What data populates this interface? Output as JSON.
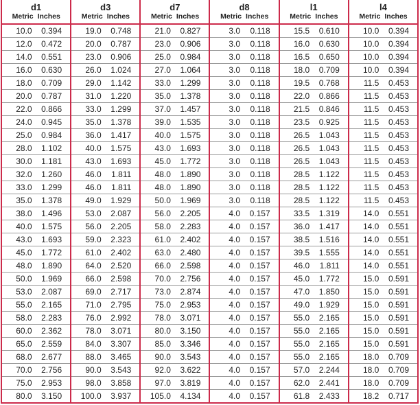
{
  "columns": [
    "d1",
    "d3",
    "d7",
    "d8",
    "l1",
    "l4"
  ],
  "subheaders": {
    "metric": "Metric",
    "inches": "Inches"
  },
  "colors": {
    "border": "#cc2a4a",
    "row_line": "#9a9a9a"
  },
  "rows": [
    [
      "10.0",
      "0.394",
      "19.0",
      "0.748",
      "21.0",
      "0.827",
      "3.0",
      "0.118",
      "15.5",
      "0.610",
      "10.0",
      "0.394"
    ],
    [
      "12.0",
      "0.472",
      "20.0",
      "0.787",
      "23.0",
      "0.906",
      "3.0",
      "0.118",
      "16.0",
      "0.630",
      "10.0",
      "0.394"
    ],
    [
      "14.0",
      "0.551",
      "23.0",
      "0.906",
      "25.0",
      "0.984",
      "3.0",
      "0.118",
      "16.5",
      "0.650",
      "10.0",
      "0.394"
    ],
    [
      "16.0",
      "0.630",
      "26.0",
      "1.024",
      "27.0",
      "1.064",
      "3.0",
      "0.118",
      "18.0",
      "0.709",
      "10.0",
      "0.394"
    ],
    [
      "18.0",
      "0.709",
      "29.0",
      "1.142",
      "33.0",
      "1.299",
      "3.0",
      "0.118",
      "19.5",
      "0.768",
      "11.5",
      "0.453"
    ],
    [
      "20.0",
      "0.787",
      "31.0",
      "1.220",
      "35.0",
      "1.378",
      "3.0",
      "0.118",
      "22.0",
      "0.866",
      "11.5",
      "0.453"
    ],
    [
      "22.0",
      "0.866",
      "33.0",
      "1.299",
      "37.0",
      "1.457",
      "3.0",
      "0.118",
      "21.5",
      "0.846",
      "11.5",
      "0.453"
    ],
    [
      "24.0",
      "0.945",
      "35.0",
      "1.378",
      "39.0",
      "1.535",
      "3.0",
      "0.118",
      "23.5",
      "0.925",
      "11.5",
      "0.453"
    ],
    [
      "25.0",
      "0.984",
      "36.0",
      "1.417",
      "40.0",
      "1.575",
      "3.0",
      "0.118",
      "26.5",
      "1.043",
      "11.5",
      "0.453"
    ],
    [
      "28.0",
      "1.102",
      "40.0",
      "1.575",
      "43.0",
      "1.693",
      "3.0",
      "0.118",
      "26.5",
      "1.043",
      "11.5",
      "0.453"
    ],
    [
      "30.0",
      "1.181",
      "43.0",
      "1.693",
      "45.0",
      "1.772",
      "3.0",
      "0.118",
      "26.5",
      "1.043",
      "11.5",
      "0.453"
    ],
    [
      "32.0",
      "1.260",
      "46.0",
      "1.811",
      "48.0",
      "1.890",
      "3.0",
      "0.118",
      "28.5",
      "1.122",
      "11.5",
      "0.453"
    ],
    [
      "33.0",
      "1.299",
      "46.0",
      "1.811",
      "48.0",
      "1.890",
      "3.0",
      "0.118",
      "28.5",
      "1.122",
      "11.5",
      "0.453"
    ],
    [
      "35.0",
      "1.378",
      "49.0",
      "1.929",
      "50.0",
      "1.969",
      "3.0",
      "0.118",
      "28.5",
      "1.122",
      "11.5",
      "0.453"
    ],
    [
      "38.0",
      "1.496",
      "53.0",
      "2.087",
      "56.0",
      "2.205",
      "4.0",
      "0.157",
      "33.5",
      "1.319",
      "14.0",
      "0.551"
    ],
    [
      "40.0",
      "1.575",
      "56.0",
      "2.205",
      "58.0",
      "2.283",
      "4.0",
      "0.157",
      "36.0",
      "1.417",
      "14.0",
      "0.551"
    ],
    [
      "43.0",
      "1.693",
      "59.0",
      "2.323",
      "61.0",
      "2.402",
      "4.0",
      "0.157",
      "38.5",
      "1.516",
      "14.0",
      "0.551"
    ],
    [
      "45.0",
      "1.772",
      "61.0",
      "2.402",
      "63.0",
      "2.480",
      "4.0",
      "0.157",
      "39.5",
      "1.555",
      "14.0",
      "0.551"
    ],
    [
      "48.0",
      "1.890",
      "64.0",
      "2.520",
      "66.0",
      "2.598",
      "4.0",
      "0.157",
      "46.0",
      "1.811",
      "14.0",
      "0.551"
    ],
    [
      "50.0",
      "1.969",
      "66.0",
      "2.598",
      "70.0",
      "2.756",
      "4.0",
      "0.157",
      "45.0",
      "1.772",
      "15.0",
      "0.591"
    ],
    [
      "53.0",
      "2.087",
      "69.0",
      "2.717",
      "73.0",
      "2.874",
      "4.0",
      "0.157",
      "47.0",
      "1.850",
      "15.0",
      "0.591"
    ],
    [
      "55.0",
      "2.165",
      "71.0",
      "2.795",
      "75.0",
      "2.953",
      "4.0",
      "0.157",
      "49.0",
      "1.929",
      "15.0",
      "0.591"
    ],
    [
      "58.0",
      "2.283",
      "76.0",
      "2.992",
      "78.0",
      "3.071",
      "4.0",
      "0.157",
      "55.0",
      "2.165",
      "15.0",
      "0.591"
    ],
    [
      "60.0",
      "2.362",
      "78.0",
      "3.071",
      "80.0",
      "3.150",
      "4.0",
      "0.157",
      "55.0",
      "2.165",
      "15.0",
      "0.591"
    ],
    [
      "65.0",
      "2.559",
      "84.0",
      "3.307",
      "85.0",
      "3.346",
      "4.0",
      "0.157",
      "55.0",
      "2.165",
      "15.0",
      "0.591"
    ],
    [
      "68.0",
      "2.677",
      "88.0",
      "3.465",
      "90.0",
      "3.543",
      "4.0",
      "0.157",
      "55.0",
      "2.165",
      "18.0",
      "0.709"
    ],
    [
      "70.0",
      "2.756",
      "90.0",
      "3.543",
      "92.0",
      "3.622",
      "4.0",
      "0.157",
      "57.0",
      "2.244",
      "18.0",
      "0.709"
    ],
    [
      "75.0",
      "2.953",
      "98.0",
      "3.858",
      "97.0",
      "3.819",
      "4.0",
      "0.157",
      "62.0",
      "2.441",
      "18.0",
      "0.709"
    ],
    [
      "80.0",
      "3.150",
      "100.0",
      "3.937",
      "105.0",
      "4.134",
      "4.0",
      "0.157",
      "61.8",
      "2.433",
      "18.2",
      "0.717"
    ]
  ]
}
